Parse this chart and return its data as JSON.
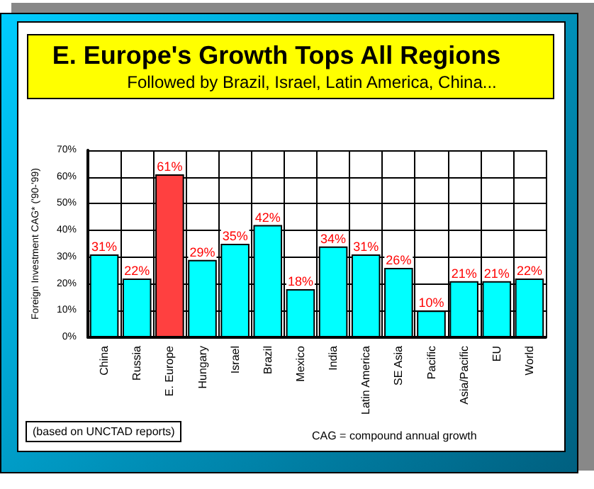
{
  "chart_data": {
    "type": "bar",
    "title": "E. Europe's Growth Tops All Regions",
    "subtitle": "Followed by Brazil, Israel, Latin America, China...",
    "ylabel": "Foreign Investment CAG* ('90-'99)",
    "categories": [
      "China",
      "Russia",
      "E. Europe",
      "Hungary",
      "Israel",
      "Brazil",
      "Mexico",
      "India",
      "Latin America",
      "SE Asia",
      "Pacific",
      "Asia/Pacific",
      "EU",
      "World"
    ],
    "values": [
      31,
      22,
      61,
      29,
      35,
      42,
      18,
      34,
      31,
      26,
      10,
      21,
      21,
      22
    ],
    "colors": [
      "#00ffff",
      "#00ffff",
      "#ff4040",
      "#00ffff",
      "#00ffff",
      "#00ffff",
      "#00ffff",
      "#00ffff",
      "#00ffff",
      "#00ffff",
      "#00ffff",
      "#00ffff",
      "#00ffff",
      "#00ffff"
    ],
    "value_labels": [
      "31%",
      "22%",
      "61%",
      "29%",
      "35%",
      "42%",
      "18%",
      "34%",
      "31%",
      "26%",
      "10%",
      "21%",
      "21%",
      "22%"
    ],
    "ylim": [
      0,
      70
    ],
    "yticks": [
      {
        "value": 0,
        "label": "0%"
      },
      {
        "value": 10,
        "label": "10%"
      },
      {
        "value": 20,
        "label": "20%"
      },
      {
        "value": 30,
        "label": "30%"
      },
      {
        "value": 40,
        "label": "40%"
      },
      {
        "value": 50,
        "label": "50%"
      },
      {
        "value": 60,
        "label": "60%"
      },
      {
        "value": 70,
        "label": "70%"
      }
    ],
    "grid": true,
    "annotations": [
      "(based on UNCTAD reports)",
      "CAG = compound annual growth"
    ]
  }
}
